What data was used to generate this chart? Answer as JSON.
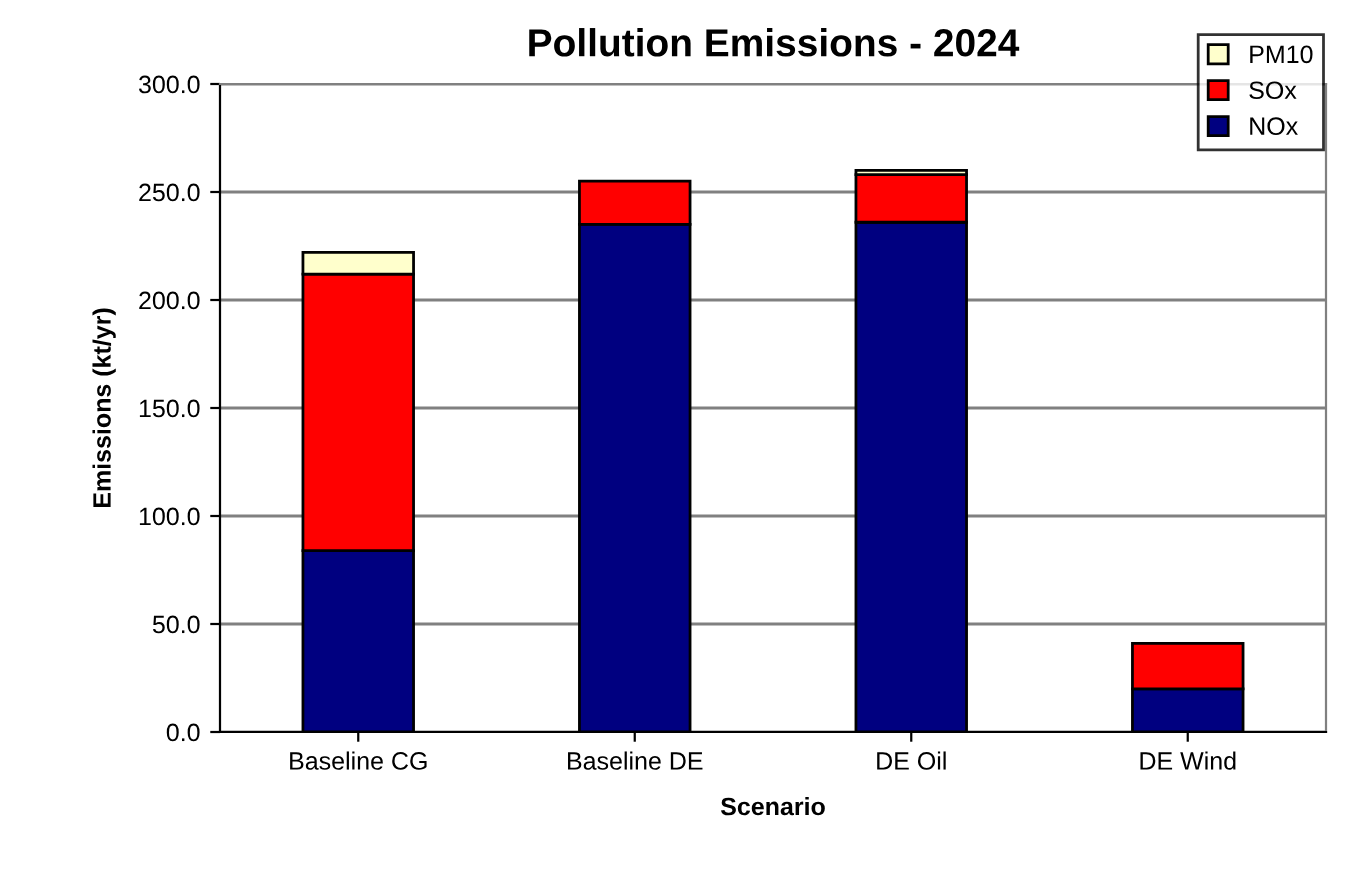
{
  "chart_data": {
    "type": "bar",
    "stacked": true,
    "title": "Pollution Emissions - 2024",
    "xlabel": "Scenario",
    "ylabel": "Emissions (kt/yr)",
    "categories": [
      "Baseline CG",
      "Baseline DE",
      "DE Oil",
      "DE Wind"
    ],
    "series": [
      {
        "name": "NOx",
        "color": "#000080",
        "values": [
          84,
          235,
          236,
          20
        ]
      },
      {
        "name": "SOx",
        "color": "#ff0000",
        "values": [
          128,
          20,
          22,
          21
        ]
      },
      {
        "name": "PM10",
        "color": "#ffffcc",
        "values": [
          10,
          null,
          2,
          null
        ]
      }
    ],
    "ylim": [
      0,
      300
    ],
    "yticks": [
      {
        "value": 0,
        "label": "0.0"
      },
      {
        "value": 50,
        "label": "50.0"
      },
      {
        "value": 100,
        "label": "100.0"
      },
      {
        "value": 150,
        "label": "150.0"
      },
      {
        "value": 200,
        "label": "200.0"
      },
      {
        "value": 250,
        "label": "250.0"
      },
      {
        "value": 300,
        "label": "300.0"
      }
    ],
    "grid": "y",
    "legend": "top right"
  }
}
